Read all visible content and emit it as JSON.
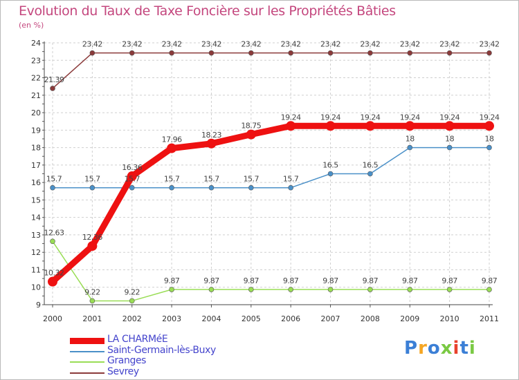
{
  "chart_data": {
    "type": "line",
    "title": "Evolution du Taux de Taxe Foncière sur les Propriétés Bâties",
    "ylabel": "(en %)",
    "xlabel": "",
    "x": [
      "2000",
      "2001",
      "2002",
      "2003",
      "2004",
      "2005",
      "2006",
      "2007",
      "2008",
      "2009",
      "2010",
      "2011"
    ],
    "ylim": [
      9,
      24
    ],
    "yticks": [
      "9",
      "10",
      "11",
      "12",
      "13",
      "14",
      "15",
      "16",
      "17",
      "18",
      "19",
      "20",
      "21",
      "22",
      "23",
      "24"
    ],
    "series": [
      {
        "name": "LA CHARMéE",
        "color": "#ee1111",
        "values": [
          10.32,
          12.36,
          16.36,
          17.96,
          18.23,
          18.75,
          19.24,
          19.24,
          19.24,
          19.24,
          19.24,
          19.24
        ],
        "labels": [
          "10.32",
          "12.36",
          "16.36",
          "17.96",
          "18.23",
          "18.75",
          "19.24",
          "19.24",
          "19.24",
          "19.24",
          "19.24",
          "19.24"
        ]
      },
      {
        "name": "Saint-Germain-lès-Buxy",
        "color": "#4a90c8",
        "values": [
          15.7,
          15.7,
          15.7,
          15.7,
          15.7,
          15.7,
          15.7,
          16.5,
          16.5,
          18,
          18,
          18
        ],
        "labels": [
          "15.7",
          "15.7",
          "15.7",
          "15.7",
          "15.7",
          "15.7",
          "15.7",
          "16.5",
          "16.5",
          "18",
          "18",
          "18"
        ]
      },
      {
        "name": "Granges",
        "color": "#99dd55",
        "values": [
          12.63,
          9.22,
          9.22,
          9.87,
          9.87,
          9.87,
          9.87,
          9.87,
          9.87,
          9.87,
          9.87,
          9.87
        ],
        "labels": [
          "12.63",
          "9.22",
          "9.22",
          "9.87",
          "9.87",
          "9.87",
          "9.87",
          "9.87",
          "9.87",
          "9.87",
          "9.87",
          "9.87"
        ]
      },
      {
        "name": "Sevrey",
        "color": "#8b3a3a",
        "values": [
          21.39,
          23.42,
          23.42,
          23.42,
          23.42,
          23.42,
          23.42,
          23.42,
          23.42,
          23.42,
          23.42,
          23.42
        ],
        "labels": [
          "21.39",
          "23.42",
          "23.42",
          "23.42",
          "23.42",
          "23.42",
          "23.42",
          "23.42",
          "23.42",
          "23.42",
          "23.42",
          "23.42"
        ]
      }
    ],
    "legend_position": "bottom-left",
    "grid": true
  },
  "logo": {
    "letters": [
      "P",
      "r",
      "o",
      "x",
      "i",
      "t",
      "i"
    ],
    "colors": [
      "#3b7fd6",
      "#f5a623",
      "#3b7fd6",
      "#7ac943",
      "#e8412c",
      "#3b7fd6",
      "#7ac943"
    ]
  }
}
